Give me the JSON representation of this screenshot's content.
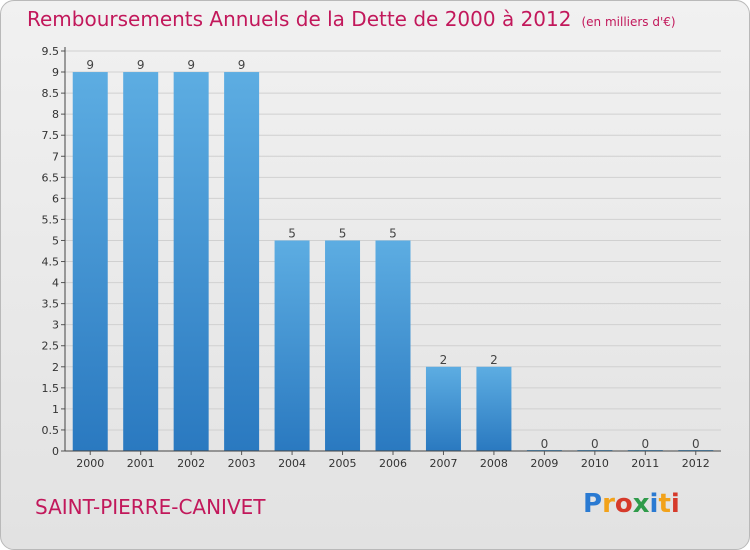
{
  "title": "Remboursements Annuels de la Dette de 2000 à 2012",
  "unit_note": "(en milliers d'€)",
  "commune": "SAINT-PIERRE-CANIVET",
  "logo": {
    "letters": [
      "P",
      "r",
      "o",
      "x",
      "i",
      "t",
      "i"
    ],
    "colors": [
      "#2a7ad2",
      "#f2a21a",
      "#d63a2b",
      "#2f9b4a",
      "#2a7ad2",
      "#f2a21a",
      "#d63a2b"
    ]
  },
  "colors": {
    "bar_top": "#5dade2",
    "bar_bottom": "#2a79c0",
    "title": "#c2185b",
    "grid": "#d0d0d0"
  },
  "chart_data": {
    "type": "bar",
    "categories": [
      "2000",
      "2001",
      "2002",
      "2003",
      "2004",
      "2005",
      "2006",
      "2007",
      "2008",
      "2009",
      "2010",
      "2011",
      "2012"
    ],
    "values": [
      9,
      9,
      9,
      9,
      5,
      5,
      5,
      2,
      2,
      0,
      0,
      0,
      0
    ],
    "data_labels": [
      "9",
      "9",
      "9",
      "9",
      "5",
      "5",
      "5",
      "2",
      "2",
      "0",
      "0",
      "0",
      "0"
    ],
    "y_ticks": [
      "0",
      "0.5",
      "1",
      "1.5",
      "2",
      "2.5",
      "3",
      "3.5",
      "4",
      "4.5",
      "5",
      "5.5",
      "6",
      "6.5",
      "7",
      "7.5",
      "8",
      "8.5",
      "9",
      "9.5"
    ],
    "ylim": [
      0,
      9.5
    ],
    "grid": true
  }
}
